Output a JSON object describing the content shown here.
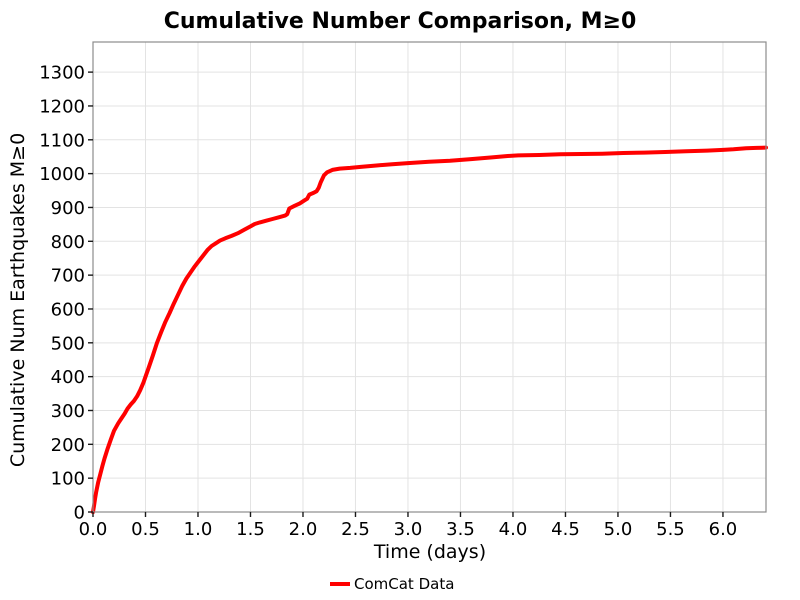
{
  "chart_data": {
    "type": "line",
    "title": "Cumulative Number Comparison, M≥0",
    "xlabel": "Time (days)",
    "ylabel": "Cumulative Num Earthquakes M≥0",
    "grid": true,
    "legend": {
      "position": "bottom-center",
      "entries": [
        {
          "label": "ComCat Data",
          "color": "#ff0000"
        }
      ]
    },
    "xlim": [
      0,
      6.41
    ],
    "ylim": [
      0,
      1389
    ],
    "xticks": {
      "values": [
        0.0,
        0.5,
        1.0,
        1.5,
        2.0,
        2.5,
        3.0,
        3.5,
        4.0,
        4.5,
        5.0,
        5.5,
        6.0
      ],
      "labels": [
        "0.0",
        "0.5",
        "1.0",
        "1.5",
        "2.0",
        "2.5",
        "3.0",
        "3.5",
        "4.0",
        "4.5",
        "5.0",
        "5.5",
        "6.0"
      ]
    },
    "yticks": {
      "values": [
        0,
        100,
        200,
        300,
        400,
        500,
        600,
        700,
        800,
        900,
        1000,
        1100,
        1200,
        1300
      ],
      "labels": [
        "0",
        "100",
        "200",
        "300",
        "400",
        "500",
        "600",
        "700",
        "800",
        "900",
        "1000",
        "1100",
        "1200",
        "1300"
      ]
    },
    "colors": {
      "background": "#ffffff",
      "grid": "#e3e3e3",
      "panel_border": "#8c8c8c",
      "tick": "#1a1a1a",
      "text": "#000000"
    },
    "series": [
      {
        "name": "ComCat Data",
        "color": "#ff0000",
        "line_width": 4,
        "points": [
          [
            0.0,
            0
          ],
          [
            0.01,
            18
          ],
          [
            0.02,
            40
          ],
          [
            0.03,
            58
          ],
          [
            0.05,
            88
          ],
          [
            0.07,
            112
          ],
          [
            0.09,
            136
          ],
          [
            0.11,
            158
          ],
          [
            0.14,
            188
          ],
          [
            0.17,
            214
          ],
          [
            0.2,
            240
          ],
          [
            0.24,
            262
          ],
          [
            0.27,
            276
          ],
          [
            0.3,
            290
          ],
          [
            0.33,
            306
          ],
          [
            0.36,
            318
          ],
          [
            0.39,
            328
          ],
          [
            0.42,
            342
          ],
          [
            0.45,
            360
          ],
          [
            0.48,
            382
          ],
          [
            0.5,
            400
          ],
          [
            0.53,
            426
          ],
          [
            0.57,
            462
          ],
          [
            0.61,
            500
          ],
          [
            0.65,
            532
          ],
          [
            0.69,
            562
          ],
          [
            0.73,
            588
          ],
          [
            0.77,
            616
          ],
          [
            0.81,
            642
          ],
          [
            0.85,
            668
          ],
          [
            0.89,
            690
          ],
          [
            0.93,
            708
          ],
          [
            0.97,
            726
          ],
          [
            1.01,
            742
          ],
          [
            1.05,
            758
          ],
          [
            1.09,
            774
          ],
          [
            1.13,
            786
          ],
          [
            1.17,
            794
          ],
          [
            1.21,
            802
          ],
          [
            1.26,
            809
          ],
          [
            1.32,
            816
          ],
          [
            1.38,
            824
          ],
          [
            1.44,
            834
          ],
          [
            1.5,
            844
          ],
          [
            1.54,
            851
          ],
          [
            1.59,
            856
          ],
          [
            1.65,
            861
          ],
          [
            1.71,
            866
          ],
          [
            1.77,
            871
          ],
          [
            1.83,
            876
          ],
          [
            1.85,
            880
          ],
          [
            1.87,
            897
          ],
          [
            1.92,
            905
          ],
          [
            1.97,
            912
          ],
          [
            2.01,
            920
          ],
          [
            2.04,
            926
          ],
          [
            2.06,
            938
          ],
          [
            2.1,
            943
          ],
          [
            2.13,
            948
          ],
          [
            2.15,
            958
          ],
          [
            2.17,
            975
          ],
          [
            2.2,
            995
          ],
          [
            2.23,
            1004
          ],
          [
            2.28,
            1011
          ],
          [
            2.35,
            1015
          ],
          [
            2.45,
            1017
          ],
          [
            2.55,
            1020
          ],
          [
            2.7,
            1024
          ],
          [
            2.85,
            1028
          ],
          [
            3.0,
            1031
          ],
          [
            3.2,
            1035
          ],
          [
            3.4,
            1038
          ],
          [
            3.6,
            1043
          ],
          [
            3.8,
            1048
          ],
          [
            3.95,
            1052
          ],
          [
            4.05,
            1054
          ],
          [
            4.25,
            1055
          ],
          [
            4.45,
            1057
          ],
          [
            4.65,
            1058
          ],
          [
            4.85,
            1059
          ],
          [
            5.05,
            1061
          ],
          [
            5.25,
            1062
          ],
          [
            5.45,
            1064
          ],
          [
            5.65,
            1066
          ],
          [
            5.85,
            1068
          ],
          [
            6.0,
            1070
          ],
          [
            6.1,
            1072
          ],
          [
            6.22,
            1075
          ],
          [
            6.32,
            1076
          ],
          [
            6.41,
            1077
          ]
        ]
      }
    ]
  }
}
